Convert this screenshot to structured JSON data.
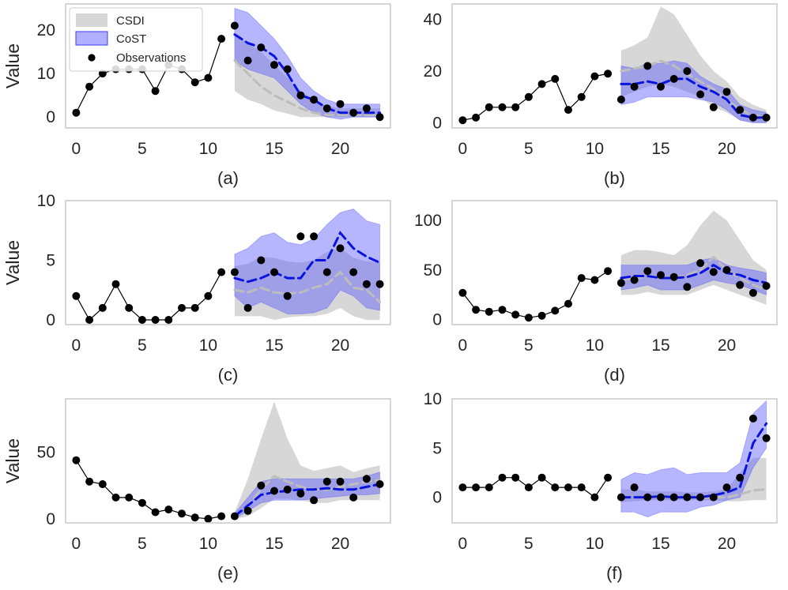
{
  "colors": {
    "csdi_band": "#c8c8c8",
    "csdi_line": "#bdbdbd",
    "cost_band": "#5050ff",
    "cost_line": "#0a14dc",
    "observations": "#000000",
    "frame": "#cccccc"
  },
  "legend": {
    "items": [
      {
        "label": "CSDI",
        "kind": "band-gray"
      },
      {
        "label": "CoST",
        "kind": "band-blue"
      },
      {
        "label": "Observations",
        "kind": "marker"
      }
    ]
  },
  "chart_data": [
    {
      "type": "line",
      "panel": "(a)",
      "ylabel": "Value",
      "xlim": [
        -0.8,
        23.8
      ],
      "ylim": [
        -2.5,
        26
      ],
      "xticks": [
        0,
        5,
        10,
        15,
        20
      ],
      "yticks": [
        0,
        10,
        20
      ],
      "observations": {
        "x": [
          0,
          1,
          2,
          3,
          4,
          5,
          6,
          7,
          8,
          9,
          10,
          11,
          12,
          13,
          14,
          15,
          16,
          17,
          18,
          19,
          20,
          21,
          22,
          23
        ],
        "y": [
          1,
          7,
          10,
          11,
          11,
          11,
          6,
          12,
          11,
          8,
          9,
          18,
          21,
          13,
          16,
          12,
          11,
          5,
          4,
          2,
          3,
          1,
          2,
          0
        ]
      },
      "history_count": 12,
      "csdi": {
        "x": [
          12,
          13,
          14,
          15,
          16,
          17,
          18,
          19,
          20,
          21,
          22,
          23
        ],
        "mean": [
          13,
          10,
          7,
          5,
          3.5,
          2,
          1,
          0.5,
          0.5,
          0.5,
          0.5,
          0.5
        ],
        "upper": [
          19,
          17,
          15,
          12,
          9,
          6,
          4,
          2.5,
          2,
          2,
          2,
          2
        ],
        "lower": [
          6,
          4,
          3,
          1.5,
          0.8,
          0,
          0,
          0,
          0,
          0,
          0,
          0
        ]
      },
      "cost": {
        "x": [
          12,
          13,
          14,
          15,
          16,
          17,
          18,
          19,
          20,
          21,
          22,
          23
        ],
        "mean": [
          19,
          17,
          16,
          14,
          10,
          5,
          4,
          2,
          1,
          1,
          1,
          1
        ],
        "upper": [
          25,
          24,
          21,
          18,
          14,
          9,
          6,
          4,
          3,
          3,
          3,
          3
        ],
        "lower": [
          13,
          11,
          10,
          9,
          6,
          3,
          1,
          0,
          -0.5,
          0,
          0,
          0
        ]
      }
    },
    {
      "type": "line",
      "panel": "(b)",
      "ylabel": "",
      "xlim": [
        -0.8,
        23.8
      ],
      "ylim": [
        -2,
        46
      ],
      "xticks": [
        0,
        5,
        10,
        15,
        20
      ],
      "yticks": [
        0,
        20,
        40
      ],
      "observations": {
        "x": [
          0,
          1,
          2,
          3,
          4,
          5,
          6,
          7,
          8,
          9,
          10,
          11,
          12,
          13,
          14,
          15,
          16,
          17,
          18,
          19,
          20,
          21,
          22,
          23
        ],
        "y": [
          1,
          2,
          6,
          6,
          6,
          10,
          15,
          17,
          5,
          10,
          18,
          19,
          9,
          14,
          22,
          14,
          17,
          20,
          11,
          6,
          12,
          5,
          2,
          2
        ]
      },
      "history_count": 12,
      "csdi": {
        "x": [
          12,
          13,
          14,
          15,
          16,
          17,
          18,
          19,
          20,
          21,
          22,
          23
        ],
        "mean": [
          20,
          21,
          22,
          24,
          22,
          19,
          16,
          13,
          9,
          5,
          3,
          2
        ],
        "upper": [
          28,
          30,
          33,
          45,
          42,
          34,
          26,
          20,
          16,
          10,
          7,
          5
        ],
        "lower": [
          10,
          12,
          14,
          15,
          14,
          12,
          10,
          6,
          4,
          1,
          0,
          0
        ]
      },
      "cost": {
        "x": [
          12,
          13,
          14,
          15,
          16,
          17,
          18,
          19,
          20,
          21,
          22,
          23
        ],
        "mean": [
          15,
          15,
          16,
          15,
          17,
          17,
          14,
          12,
          9,
          3,
          2,
          2
        ],
        "upper": [
          22,
          21,
          23,
          23,
          24,
          23,
          18,
          15,
          13,
          7,
          5,
          4
        ],
        "lower": [
          7,
          8,
          10,
          10,
          10,
          10,
          9,
          8,
          5,
          1,
          0,
          0
        ]
      }
    },
    {
      "type": "line",
      "panel": "(c)",
      "ylabel": "Value",
      "xlim": [
        -0.8,
        23.8
      ],
      "ylim": [
        -0.4,
        10
      ],
      "xticks": [
        0,
        5,
        10,
        15,
        20
      ],
      "yticks": [
        0,
        5,
        10
      ],
      "observations": {
        "x": [
          0,
          1,
          2,
          3,
          4,
          5,
          6,
          7,
          8,
          9,
          10,
          11,
          12,
          13,
          14,
          15,
          16,
          17,
          18,
          19,
          20,
          21,
          22,
          23
        ],
        "y": [
          2,
          0,
          1,
          3,
          1,
          0,
          0,
          0,
          1,
          1,
          2,
          4,
          4,
          1,
          5,
          4,
          2,
          7,
          7,
          4,
          6,
          4,
          3,
          3
        ]
      },
      "history_count": 12,
      "csdi": {
        "x": [
          12,
          13,
          14,
          15,
          16,
          17,
          18,
          19,
          20,
          21,
          22,
          23
        ],
        "mean": [
          2.5,
          2.3,
          2.7,
          2.3,
          2.2,
          2.3,
          2.7,
          3,
          4,
          2.7,
          2.5,
          1.5
        ],
        "upper": [
          4.5,
          4.7,
          5.3,
          5.2,
          4.9,
          4.8,
          5,
          5.7,
          6,
          5.2,
          4.9,
          4.8
        ],
        "lower": [
          0.3,
          0.3,
          0.3,
          0,
          0.2,
          0.3,
          0.3,
          0.5,
          1,
          0.3,
          0,
          0
        ]
      },
      "cost": {
        "x": [
          12,
          13,
          14,
          15,
          16,
          17,
          18,
          19,
          20,
          21,
          22,
          23
        ],
        "mean": [
          3.5,
          3.2,
          3.5,
          4,
          3.5,
          3.5,
          5,
          5,
          7.3,
          6,
          5.3,
          4.8
        ],
        "upper": [
          5.5,
          6,
          7,
          7.3,
          6.5,
          6.3,
          6.8,
          8,
          9,
          9.3,
          8.3,
          8
        ],
        "lower": [
          2,
          1,
          1.5,
          1,
          0.5,
          0.5,
          0.6,
          1,
          2.5,
          2,
          1,
          0.8
        ]
      }
    },
    {
      "type": "line",
      "panel": "(d)",
      "ylabel": "",
      "xlim": [
        -0.8,
        23.8
      ],
      "ylim": [
        -5,
        120
      ],
      "xticks": [
        0,
        5,
        10,
        15,
        20
      ],
      "yticks": [
        0,
        50,
        100
      ],
      "observations": {
        "x": [
          0,
          1,
          2,
          3,
          4,
          5,
          6,
          7,
          8,
          9,
          10,
          11,
          12,
          13,
          14,
          15,
          16,
          17,
          18,
          19,
          20,
          21,
          22,
          23
        ],
        "y": [
          27,
          10,
          8,
          10,
          5,
          2,
          4,
          9,
          16,
          42,
          40,
          49,
          37,
          40,
          49,
          45,
          43,
          33,
          57,
          48,
          50,
          35,
          27,
          34
        ]
      },
      "history_count": 12,
      "csdi": {
        "x": [
          12,
          13,
          14,
          15,
          16,
          17,
          18,
          19,
          20,
          21,
          22,
          23
        ],
        "mean": [
          40,
          42,
          44,
          43,
          42,
          45,
          50,
          63,
          50,
          42,
          35,
          30
        ],
        "upper": [
          65,
          70,
          70,
          68,
          65,
          75,
          95,
          110,
          100,
          80,
          60,
          50
        ],
        "lower": [
          25,
          25,
          28,
          25,
          25,
          25,
          30,
          35,
          30,
          25,
          20,
          15
        ]
      },
      "cost": {
        "x": [
          12,
          13,
          14,
          15,
          16,
          17,
          18,
          19,
          20,
          21,
          22,
          23
        ],
        "mean": [
          42,
          44,
          44,
          42,
          42,
          43,
          47,
          55,
          47,
          45,
          40,
          37
        ],
        "upper": [
          55,
          55,
          55,
          55,
          55,
          55,
          60,
          62,
          55,
          52,
          50,
          47
        ],
        "lower": [
          30,
          32,
          35,
          30,
          30,
          30,
          35,
          40,
          37,
          35,
          30,
          25
        ]
      }
    },
    {
      "type": "line",
      "panel": "(e)",
      "ylabel": "Value",
      "xlim": [
        -0.8,
        23.8
      ],
      "ylim": [
        -3,
        90
      ],
      "xticks": [
        0,
        5,
        10,
        15,
        20
      ],
      "yticks": [
        0,
        50
      ],
      "observations": {
        "x": [
          0,
          1,
          2,
          3,
          4,
          5,
          6,
          7,
          8,
          9,
          10,
          11,
          12,
          13,
          14,
          15,
          16,
          17,
          18,
          19,
          20,
          21,
          22,
          23
        ],
        "y": [
          44,
          28,
          26,
          16,
          16,
          12,
          5,
          7,
          4,
          1,
          0,
          2,
          2,
          6,
          25,
          21,
          22,
          19,
          14,
          28,
          28,
          16,
          30,
          26
        ]
      },
      "history_count": 12,
      "csdi": {
        "x": [
          12,
          13,
          14,
          15,
          16,
          17,
          18,
          19,
          20,
          21,
          22,
          23
        ],
        "mean": [
          2,
          10,
          22,
          32,
          28,
          24,
          22,
          22,
          24,
          26,
          28,
          29
        ],
        "upper": [
          5,
          30,
          60,
          88,
          60,
          40,
          36,
          38,
          40,
          35,
          38,
          40
        ],
        "lower": [
          0,
          2,
          8,
          15,
          15,
          14,
          12,
          12,
          14,
          14,
          14,
          14
        ]
      },
      "cost": {
        "x": [
          12,
          13,
          14,
          15,
          16,
          17,
          18,
          19,
          20,
          21,
          22,
          23
        ],
        "mean": [
          2,
          10,
          18,
          20,
          21,
          22,
          22,
          23,
          22,
          22,
          24,
          26
        ],
        "upper": [
          4,
          16,
          28,
          30,
          30,
          30,
          30,
          30,
          30,
          30,
          32,
          35
        ],
        "lower": [
          0,
          6,
          12,
          14,
          14,
          14,
          15,
          16,
          17,
          18,
          18,
          19
        ]
      }
    },
    {
      "type": "line",
      "panel": "(f)",
      "ylabel": "",
      "xlim": [
        -0.8,
        23.8
      ],
      "ylim": [
        -2.6,
        10
      ],
      "xticks": [
        0,
        5,
        10,
        15,
        20
      ],
      "yticks": [
        0,
        5,
        10
      ],
      "observations": {
        "x": [
          0,
          1,
          2,
          3,
          4,
          5,
          6,
          7,
          8,
          9,
          10,
          11,
          12,
          13,
          14,
          15,
          16,
          17,
          18,
          19,
          20,
          21,
          22,
          23
        ],
        "y": [
          1,
          1,
          1,
          2,
          2,
          1,
          2,
          1,
          1,
          1,
          0,
          2,
          0,
          1,
          0,
          0,
          0,
          0,
          0,
          0,
          1,
          2,
          8,
          6
        ]
      },
      "history_count": 12,
      "csdi": {
        "x": [
          12,
          13,
          14,
          15,
          16,
          17,
          18,
          19,
          20,
          21,
          22,
          23
        ],
        "mean": [
          0,
          0,
          0,
          0,
          0,
          0,
          0,
          0,
          0,
          0.3,
          0.7,
          0.8
        ],
        "upper": [
          0.8,
          0.8,
          0.6,
          0.6,
          0.6,
          0.5,
          0.5,
          0.6,
          0.8,
          2.5,
          4,
          4
        ],
        "lower": [
          -0.5,
          -0.4,
          -0.3,
          -0.3,
          -0.3,
          -0.3,
          -0.3,
          -0.3,
          -0.4,
          -0.4,
          -0.3,
          -0.3
        ]
      },
      "cost": {
        "x": [
          12,
          13,
          14,
          15,
          16,
          17,
          18,
          19,
          20,
          21,
          22,
          23
        ],
        "mean": [
          0,
          0,
          0,
          0.1,
          0,
          0,
          0,
          0.2,
          0.5,
          1,
          5.5,
          7.5
        ],
        "upper": [
          1.8,
          2.5,
          2.3,
          2.8,
          3,
          2.3,
          2.5,
          2.5,
          2.5,
          3.5,
          8.5,
          9.8
        ],
        "lower": [
          -1.5,
          -1.5,
          -2,
          -1.5,
          -1.5,
          -1.5,
          -1,
          -0.8,
          -0.3,
          0,
          3,
          5
        ]
      }
    }
  ]
}
